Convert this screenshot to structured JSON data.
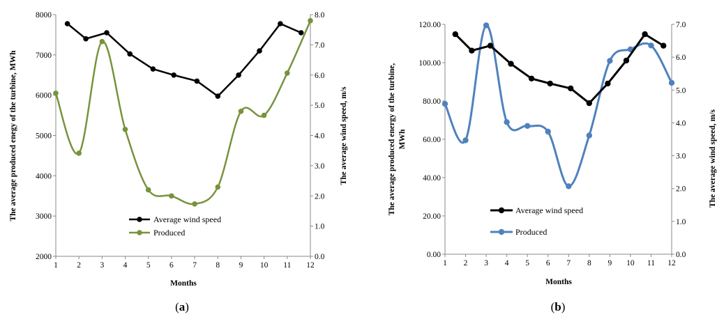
{
  "chart_data": [
    {
      "type": "line",
      "panel": "a",
      "caption_open": "(",
      "caption_letter": "a",
      "caption_close": ")",
      "xlabel": "Months",
      "ylabel_left": "The average produced enegy of the turbine, MWh",
      "ylabel_right": "The average wind speed, m/s",
      "ylim_left": [
        2000,
        8000
      ],
      "ylim_right": [
        0,
        8
      ],
      "xlim": [
        1,
        12
      ],
      "x_ticks": [
        "1",
        "2",
        "3",
        "4",
        "5",
        "6",
        "7",
        "8",
        "9",
        "10",
        "11",
        "12"
      ],
      "y_left_ticks": [
        "2000",
        "3000",
        "4000",
        "5000",
        "6000",
        "7000",
        "8000"
      ],
      "y_right_ticks": [
        "0.0",
        "1.0",
        "2.0",
        "3.0",
        "4.0",
        "5.0",
        "6.0",
        "7.0",
        "8.0"
      ],
      "grid": false,
      "legend_position": "bottom-center",
      "series": [
        {
          "name": "Average wind speed",
          "axis": "right",
          "smooth": false,
          "color": "#000000",
          "x": [
            1.5,
            2.3,
            3.2,
            4.2,
            5.2,
            6.1,
            7.1,
            8.0,
            8.9,
            9.8,
            10.7,
            11.6
          ],
          "values": [
            7.7,
            7.2,
            7.4,
            6.7,
            6.2,
            6.0,
            5.8,
            5.3,
            6.0,
            6.8,
            7.7,
            7.4
          ]
        },
        {
          "name": "Produced",
          "axis": "left",
          "smooth": true,
          "color": "#77933c",
          "x": [
            1,
            2,
            3,
            4,
            5,
            6,
            7,
            8,
            9,
            10,
            11,
            12
          ],
          "values": [
            6050,
            4560,
            7330,
            5150,
            3650,
            3500,
            3300,
            3720,
            5600,
            5500,
            6550,
            7850
          ]
        }
      ]
    },
    {
      "type": "line",
      "panel": "b",
      "caption_open": "(",
      "caption_letter": "b",
      "caption_close": ")",
      "xlabel": "Months",
      "ylabel_left_line1": "The average produced energy of the  turbine,",
      "ylabel_left_line2": "MWh",
      "ylabel_right": "The average wind speed, m/s",
      "ylim_left": [
        0,
        120
      ],
      "ylim_right": [
        0,
        7
      ],
      "xlim": [
        1,
        12
      ],
      "x_ticks": [
        "1",
        "2",
        "3",
        "4",
        "5",
        "6",
        "7",
        "8",
        "9",
        "10",
        "11",
        "12"
      ],
      "y_left_ticks": [
        "0.00",
        "20.00",
        "40.00",
        "60.00",
        "80.00",
        "100.00",
        "120.00"
      ],
      "y_right_ticks": [
        "0.0",
        "1.0",
        "2.0",
        "3.0",
        "4.0",
        "5.0",
        "6.0",
        "7.0"
      ],
      "grid": false,
      "legend_position": "bottom-center",
      "series": [
        {
          "name": "Average wind speed",
          "axis": "right",
          "smooth": false,
          "color": "#000000",
          "x": [
            1.5,
            2.3,
            3.2,
            4.2,
            5.2,
            6.1,
            7.1,
            8.0,
            8.9,
            9.8,
            10.7,
            11.6
          ],
          "values": [
            6.7,
            6.2,
            6.35,
            5.8,
            5.35,
            5.2,
            5.05,
            4.6,
            5.2,
            5.9,
            6.7,
            6.35
          ]
        },
        {
          "name": "Produced",
          "axis": "left",
          "smooth": true,
          "color": "#4f81bd",
          "x": [
            1,
            2,
            3,
            4,
            5,
            6,
            7,
            8,
            9,
            10,
            11,
            12
          ],
          "values": [
            78.5,
            59.5,
            119.5,
            69,
            67,
            64,
            35.5,
            62,
            101,
            107,
            109,
            89.5
          ]
        }
      ]
    }
  ]
}
